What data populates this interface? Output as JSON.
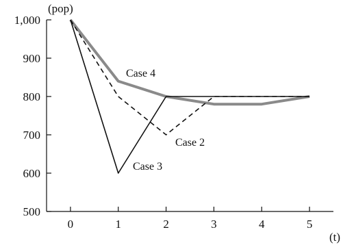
{
  "chart_data": {
    "type": "line",
    "x_unit": "(t)",
    "y_unit": "(pop)",
    "x_ticks": [
      "0",
      "1",
      "2",
      "3",
      "4",
      "5"
    ],
    "y_ticks": [
      "500",
      "600",
      "700",
      "800",
      "900",
      "1,000"
    ],
    "xlim": [
      -0.5,
      5.5
    ],
    "ylim": [
      500,
      1000
    ],
    "grid": false,
    "series": [
      {
        "name": "Case 2",
        "style": "dashed",
        "color": "#111111",
        "x": [
          0,
          1,
          2,
          3,
          4,
          5
        ],
        "y": [
          1000,
          800,
          700,
          800,
          800,
          800
        ]
      },
      {
        "name": "Case 3",
        "style": "solid",
        "color": "#111111",
        "x": [
          0,
          1,
          2,
          3,
          4,
          5
        ],
        "y": [
          1000,
          600,
          800,
          800,
          800,
          800
        ]
      },
      {
        "name": "Case 4",
        "style": "thick-gray",
        "color": "#8a8a8a",
        "x": [
          0,
          1,
          2,
          3,
          4,
          5
        ],
        "y": [
          1000,
          840,
          800,
          780,
          780,
          800
        ]
      }
    ],
    "annotations": [
      {
        "text": "Case 4",
        "series": "Case 4"
      },
      {
        "text": "Case 2",
        "series": "Case 2"
      },
      {
        "text": "Case 3",
        "series": "Case 3"
      }
    ]
  }
}
